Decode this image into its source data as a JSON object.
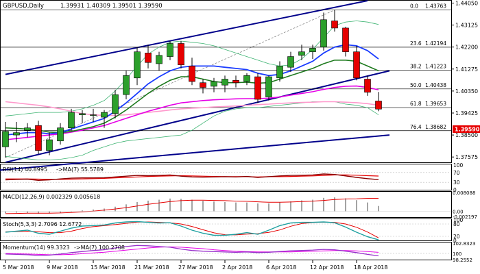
{
  "header": {
    "symbol": "GBPUSD,Daily",
    "ohlc": "1.39931 1.40309 1.39501 1.39590"
  },
  "current_price": "1.39590",
  "colors": {
    "bull": "#2ca02c",
    "bear": "#e60000",
    "channel": "#00008b",
    "ma_blue": "#1a3cff",
    "ma_green": "#1e7a1e",
    "ma_magenta": "#e600e6",
    "ma_pink": "#ff99cc",
    "bollinger": "#3cb371",
    "fib": "#000000",
    "price_label_bg": "#e60000"
  },
  "chart_data": {
    "type": "candlestick",
    "y_ticks": [
      "1.44050",
      "1.43125",
      "1.42200",
      "1.41275",
      "1.40350",
      "1.39425",
      "1.38500",
      "1.37575"
    ],
    "x_ticks": [
      "5 Mar 2018",
      "9 Mar 2018",
      "15 Mar 2018",
      "21 Mar 2018",
      "27 Mar 2018",
      "2 Apr 2018",
      "6 Apr 2018",
      "12 Apr 2018",
      "18 Apr 2018"
    ],
    "x_tick_index": [
      0,
      4,
      8,
      12,
      16,
      20,
      24,
      28,
      32
    ],
    "ylim": [
      1.3735,
      1.4415
    ],
    "fib_levels": [
      {
        "label": "0.0",
        "value": "1.43763"
      },
      {
        "label": "23.6",
        "value": "1.42194"
      },
      {
        "label": "38.2",
        "value": "1.41223"
      },
      {
        "label": "50.0",
        "value": "1.40438"
      },
      {
        "label": "61.8",
        "value": "1.39653"
      },
      {
        "label": "76.4",
        "value": "1.38682"
      }
    ],
    "candles": [
      {
        "o": 1.38,
        "h": 1.3905,
        "l": 1.3755,
        "c": 1.3865
      },
      {
        "o": 1.385,
        "h": 1.3905,
        "l": 1.382,
        "c": 1.386
      },
      {
        "o": 1.387,
        "h": 1.39,
        "l": 1.384,
        "c": 1.388
      },
      {
        "o": 1.389,
        "h": 1.391,
        "l": 1.377,
        "c": 1.3785
      },
      {
        "o": 1.3785,
        "h": 1.386,
        "l": 1.3765,
        "c": 1.383
      },
      {
        "o": 1.3825,
        "h": 1.39,
        "l": 1.381,
        "c": 1.388
      },
      {
        "o": 1.388,
        "h": 1.396,
        "l": 1.387,
        "c": 1.3945
      },
      {
        "o": 1.3935,
        "h": 1.3955,
        "l": 1.39,
        "c": 1.394
      },
      {
        "o": 1.3935,
        "h": 1.396,
        "l": 1.3905,
        "c": 1.3935
      },
      {
        "o": 1.3925,
        "h": 1.3955,
        "l": 1.388,
        "c": 1.3945
      },
      {
        "o": 1.394,
        "h": 1.404,
        "l": 1.392,
        "c": 1.402
      },
      {
        "o": 1.402,
        "h": 1.412,
        "l": 1.4,
        "c": 1.41
      },
      {
        "o": 1.409,
        "h": 1.422,
        "l": 1.406,
        "c": 1.42
      },
      {
        "o": 1.4195,
        "h": 1.423,
        "l": 1.413,
        "c": 1.4155
      },
      {
        "o": 1.415,
        "h": 1.42,
        "l": 1.412,
        "c": 1.4185
      },
      {
        "o": 1.418,
        "h": 1.4245,
        "l": 1.4165,
        "c": 1.4235
      },
      {
        "o": 1.4235,
        "h": 1.4245,
        "l": 1.413,
        "c": 1.4145
      },
      {
        "o": 1.414,
        "h": 1.4175,
        "l": 1.406,
        "c": 1.4075
      },
      {
        "o": 1.407,
        "h": 1.4085,
        "l": 1.4025,
        "c": 1.405
      },
      {
        "o": 1.4055,
        "h": 1.409,
        "l": 1.403,
        "c": 1.4075
      },
      {
        "o": 1.406,
        "h": 1.41,
        "l": 1.403,
        "c": 1.4085
      },
      {
        "o": 1.408,
        "h": 1.41,
        "l": 1.405,
        "c": 1.407
      },
      {
        "o": 1.4075,
        "h": 1.411,
        "l": 1.406,
        "c": 1.41
      },
      {
        "o": 1.4095,
        "h": 1.411,
        "l": 1.3985,
        "c": 1.4
      },
      {
        "o": 1.401,
        "h": 1.41,
        "l": 1.3995,
        "c": 1.4095
      },
      {
        "o": 1.409,
        "h": 1.416,
        "l": 1.4075,
        "c": 1.414
      },
      {
        "o": 1.4135,
        "h": 1.42,
        "l": 1.4115,
        "c": 1.418
      },
      {
        "o": 1.4185,
        "h": 1.423,
        "l": 1.4165,
        "c": 1.42
      },
      {
        "o": 1.42,
        "h": 1.423,
        "l": 1.417,
        "c": 1.4215
      },
      {
        "o": 1.422,
        "h": 1.4365,
        "l": 1.4205,
        "c": 1.4335
      },
      {
        "o": 1.433,
        "h": 1.4375,
        "l": 1.4285,
        "c": 1.43
      },
      {
        "o": 1.43,
        "h": 1.4305,
        "l": 1.418,
        "c": 1.42
      },
      {
        "o": 1.42,
        "h": 1.4225,
        "l": 1.408,
        "c": 1.409
      },
      {
        "o": 1.4085,
        "h": 1.41,
        "l": 1.4015,
        "c": 1.403
      },
      {
        "o": 1.3993,
        "h": 1.4031,
        "l": 1.395,
        "c": 1.3959
      }
    ],
    "ma_blue": [
      1.385,
      1.3855,
      1.386,
      1.386,
      1.3855,
      1.386,
      1.3875,
      1.389,
      1.3905,
      1.392,
      1.395,
      1.3985,
      1.4025,
      1.4065,
      1.4095,
      1.412,
      1.4135,
      1.414,
      1.414,
      1.414,
      1.4135,
      1.413,
      1.4125,
      1.411,
      1.41,
      1.4105,
      1.412,
      1.414,
      1.416,
      1.4195,
      1.422,
      1.423,
      1.4225,
      1.4205,
      1.417
    ],
    "ma_green": [
      1.388,
      1.3878,
      1.3875,
      1.387,
      1.3862,
      1.386,
      1.3865,
      1.3875,
      1.3885,
      1.39,
      1.3925,
      1.3955,
      1.399,
      1.4025,
      1.4055,
      1.408,
      1.4095,
      1.4095,
      1.4085,
      1.4075,
      1.407,
      1.407,
      1.4072,
      1.4068,
      1.407,
      1.4085,
      1.41,
      1.4115,
      1.413,
      1.415,
      1.4165,
      1.4165,
      1.416,
      1.414,
      1.412
    ],
    "ma_magenta": [
      1.383,
      1.3835,
      1.384,
      1.3845,
      1.385,
      1.3855,
      1.3862,
      1.387,
      1.388,
      1.389,
      1.3905,
      1.392,
      1.3935,
      1.395,
      1.3962,
      1.3975,
      1.3985,
      1.399,
      1.3995,
      1.3998,
      1.4,
      1.4002,
      1.4003,
      1.4003,
      1.4005,
      1.401,
      1.4018,
      1.4025,
      1.4032,
      1.4042,
      1.405,
      1.4055,
      1.4056,
      1.405,
      1.404
    ],
    "ma_pink": [
      1.399,
      1.3985,
      1.398,
      1.3975,
      1.3968,
      1.396,
      1.395,
      1.394,
      1.3935,
      1.3932,
      1.3932,
      1.3935,
      1.394,
      1.3945,
      1.395,
      1.3955,
      1.396,
      1.3963,
      1.3965,
      1.3968,
      1.397,
      1.3972,
      1.3975,
      1.3978,
      1.398,
      1.3983,
      1.3985,
      1.3987,
      1.3988,
      1.399,
      1.399,
      1.3988,
      1.3986,
      1.3982,
      1.3975
    ],
    "boll_upper": [
      1.393,
      1.3935,
      1.394,
      1.3945,
      1.3945,
      1.3945,
      1.395,
      1.396,
      1.3975,
      1.3995,
      1.4035,
      1.4085,
      1.414,
      1.419,
      1.422,
      1.424,
      1.4245,
      1.424,
      1.4235,
      1.4225,
      1.421,
      1.4195,
      1.418,
      1.4165,
      1.415,
      1.414,
      1.4145,
      1.417,
      1.421,
      1.426,
      1.431,
      1.4325,
      1.433,
      1.4325,
      1.4315
    ],
    "boll_lower": [
      1.376,
      1.3755,
      1.375,
      1.3745,
      1.3745,
      1.3748,
      1.3755,
      1.3765,
      1.3785,
      1.38,
      1.3815,
      1.3825,
      1.383,
      1.3835,
      1.384,
      1.3845,
      1.385,
      1.387,
      1.39,
      1.393,
      1.395,
      1.396,
      1.3965,
      1.3965,
      1.397,
      1.3975,
      1.398,
      1.3985,
      1.399,
      1.399,
      1.399,
      1.398,
      1.3975,
      1.3965,
      1.3935
    ],
    "indicators": {
      "rsi": {
        "title": "RSI(14) 40.8995",
        "sub": "->MA(7) 55.5789",
        "ticks": [
          "100",
          "70",
          "30",
          "0"
        ],
        "rsi": [
          40,
          42,
          43,
          38,
          40,
          44,
          47,
          48,
          48,
          49,
          52,
          55,
          58,
          57,
          58,
          60,
          55,
          52,
          51,
          52,
          53,
          52,
          54,
          50,
          53,
          56,
          58,
          59,
          60,
          64,
          62,
          56,
          50,
          45,
          41
        ],
        "ma": [
          44,
          44,
          44,
          43,
          42,
          42,
          43,
          44,
          45,
          46,
          48,
          50,
          52,
          54,
          55,
          56,
          57,
          56,
          55,
          54,
          53,
          53,
          53,
          52,
          53,
          53,
          54,
          55,
          56,
          58,
          60,
          60,
          59,
          57,
          55.6
        ]
      },
      "macd": {
        "title": "MACD(12,26,9) 0.002329 0.005618",
        "ticks": [
          "0.008088",
          "0.00",
          "-0.002197"
        ],
        "hist": [
          -0.0008,
          -0.0006,
          -0.0007,
          -0.001,
          -0.0009,
          -0.0006,
          -0.0002,
          0.0004,
          0.0008,
          0.0012,
          0.002,
          0.003,
          0.004,
          0.0046,
          0.005,
          0.0055,
          0.0054,
          0.005,
          0.0045,
          0.0042,
          0.004,
          0.0038,
          0.0038,
          0.0034,
          0.0034,
          0.0038,
          0.0043,
          0.0047,
          0.005,
          0.0058,
          0.006,
          0.0056,
          0.0048,
          0.0038,
          0.0023
        ],
        "signal": [
          -0.001,
          -0.0009,
          -0.0008,
          -0.0008,
          -0.0008,
          -0.0007,
          -0.0005,
          -0.0002,
          0.0001,
          0.0005,
          0.001,
          0.0016,
          0.0023,
          0.003,
          0.0036,
          0.0042,
          0.0046,
          0.0048,
          0.0048,
          0.0047,
          0.0046,
          0.0044,
          0.0043,
          0.0041,
          0.0039,
          0.0039,
          0.004,
          0.0042,
          0.0044,
          0.0047,
          0.0051,
          0.0053,
          0.0054,
          0.0056,
          0.0056
        ]
      },
      "stoch": {
        "title": "Stoch(5,3,3) 2.7096 12.6772",
        "ticks": [
          "100",
          "80",
          "20",
          "0"
        ],
        "k": [
          40,
          45,
          50,
          35,
          30,
          45,
          60,
          70,
          72,
          75,
          85,
          90,
          92,
          88,
          85,
          86,
          70,
          50,
          35,
          25,
          25,
          30,
          38,
          30,
          50,
          72,
          85,
          88,
          88,
          90,
          86,
          65,
          40,
          18,
          3
        ],
        "d": [
          42,
          43,
          45,
          42,
          38,
          38,
          45,
          58,
          67,
          72,
          77,
          83,
          89,
          90,
          88,
          86,
          80,
          68,
          52,
          37,
          28,
          27,
          31,
          33,
          39,
          51,
          69,
          82,
          87,
          89,
          88,
          80,
          64,
          41,
          12.7
        ]
      },
      "momentum": {
        "title": "Momentum(14) 99.3323",
        "sub": "->MA(7) 100.2708",
        "ticks": [
          "102.8323",
          "100",
          "98.2552"
        ],
        "mom": [
          99.8,
          99.7,
          99.6,
          99.4,
          99.5,
          99.8,
          100.2,
          100.5,
          100.8,
          101.0,
          101.5,
          101.9,
          102.2,
          102.1,
          101.9,
          101.7,
          101.2,
          100.8,
          100.6,
          100.5,
          100.4,
          100.3,
          100.4,
          100.2,
          100.3,
          100.5,
          100.7,
          100.8,
          100.9,
          101.1,
          101.0,
          100.6,
          100.2,
          99.7,
          99.3
        ],
        "ma": [
          100.0,
          99.9,
          99.8,
          99.7,
          99.6,
          99.6,
          99.7,
          99.9,
          100.1,
          100.3,
          100.6,
          100.9,
          101.2,
          101.5,
          101.7,
          101.8,
          101.7,
          101.5,
          101.3,
          101.0,
          100.8,
          100.6,
          100.5,
          100.4,
          100.4,
          100.4,
          100.4,
          100.5,
          100.6,
          100.7,
          100.8,
          100.8,
          100.7,
          100.5,
          100.27
        ]
      }
    }
  }
}
